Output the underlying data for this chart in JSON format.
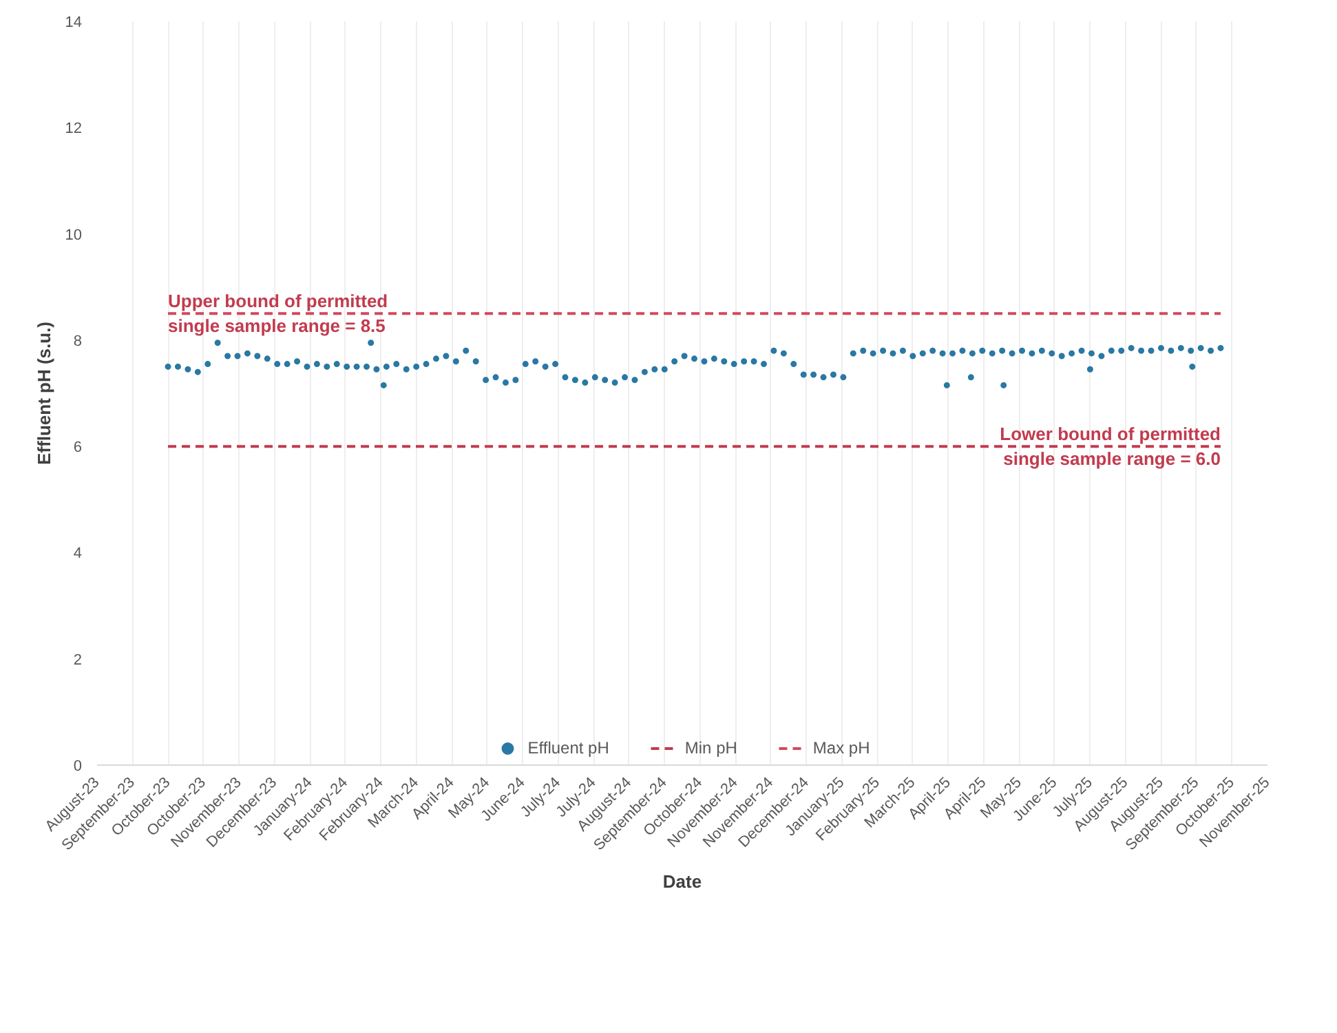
{
  "chart_data": {
    "type": "scatter",
    "xlabel": "Date",
    "ylabel": "Effluent pH (s.u.)",
    "xlim": [
      "2023-08-12",
      "2025-11-14"
    ],
    "ylim": [
      0,
      14
    ],
    "yticks": [
      0,
      2,
      4,
      6,
      8,
      10,
      12,
      14
    ],
    "xticks": [
      {
        "value": "2023-08-12",
        "label": "August-23"
      },
      {
        "value": "2023-09-06",
        "label": "September-23"
      },
      {
        "value": "2023-10-01",
        "label": "October-23"
      },
      {
        "value": "2023-10-26",
        "label": "October-23"
      },
      {
        "value": "2023-11-20",
        "label": "November-23"
      },
      {
        "value": "2023-12-15",
        "label": "December-23"
      },
      {
        "value": "2024-01-09",
        "label": "January-24"
      },
      {
        "value": "2024-02-03",
        "label": "February-24"
      },
      {
        "value": "2024-02-28",
        "label": "February-24"
      },
      {
        "value": "2024-03-24",
        "label": "March-24"
      },
      {
        "value": "2024-04-18",
        "label": "April-24"
      },
      {
        "value": "2024-05-13",
        "label": "May-24"
      },
      {
        "value": "2024-06-07",
        "label": "June-24"
      },
      {
        "value": "2024-07-02",
        "label": "July-24"
      },
      {
        "value": "2024-07-27",
        "label": "July-24"
      },
      {
        "value": "2024-08-21",
        "label": "August-24"
      },
      {
        "value": "2024-09-15",
        "label": "September-24"
      },
      {
        "value": "2024-10-10",
        "label": "October-24"
      },
      {
        "value": "2024-11-04",
        "label": "November-24"
      },
      {
        "value": "2024-11-29",
        "label": "November-24"
      },
      {
        "value": "2024-12-24",
        "label": "December-24"
      },
      {
        "value": "2025-01-18",
        "label": "January-25"
      },
      {
        "value": "2025-02-12",
        "label": "February-25"
      },
      {
        "value": "2025-03-09",
        "label": "March-25"
      },
      {
        "value": "2025-04-03",
        "label": "April-25"
      },
      {
        "value": "2025-04-28",
        "label": "April-25"
      },
      {
        "value": "2025-05-23",
        "label": "May-25"
      },
      {
        "value": "2025-06-17",
        "label": "June-25"
      },
      {
        "value": "2025-07-12",
        "label": "July-25"
      },
      {
        "value": "2025-08-06",
        "label": "August-25"
      },
      {
        "value": "2025-08-31",
        "label": "August-25"
      },
      {
        "value": "2025-09-25",
        "label": "September-25"
      },
      {
        "value": "2025-10-20",
        "label": "October-25"
      },
      {
        "value": "2025-11-14",
        "label": "November-25"
      }
    ],
    "grid": "x",
    "legend": "bottom",
    "series": [
      {
        "name": "Effluent pH",
        "marker": "circle",
        "color": "#2a78a4",
        "x": [
          "2023-10-01",
          "2023-10-08",
          "2023-10-15",
          "2023-10-22",
          "2023-10-29",
          "2023-11-05",
          "2023-11-12",
          "2023-11-19",
          "2023-11-26",
          "2023-12-03",
          "2023-12-10",
          "2023-12-17",
          "2023-12-24",
          "2023-12-31",
          "2024-01-07",
          "2024-01-14",
          "2024-01-21",
          "2024-01-28",
          "2024-02-04",
          "2024-02-11",
          "2024-02-18",
          "2024-02-21",
          "2024-02-25",
          "2024-03-01",
          "2024-03-03",
          "2024-03-10",
          "2024-03-17",
          "2024-03-24",
          "2024-03-31",
          "2024-04-07",
          "2024-04-14",
          "2024-04-21",
          "2024-04-28",
          "2024-05-05",
          "2024-05-12",
          "2024-05-19",
          "2024-05-26",
          "2024-06-02",
          "2024-06-09",
          "2024-06-16",
          "2024-06-23",
          "2024-06-30",
          "2024-07-07",
          "2024-07-14",
          "2024-07-21",
          "2024-07-28",
          "2024-08-04",
          "2024-08-11",
          "2024-08-18",
          "2024-08-25",
          "2024-09-01",
          "2024-09-08",
          "2024-09-15",
          "2024-09-22",
          "2024-09-29",
          "2024-10-06",
          "2024-10-13",
          "2024-10-20",
          "2024-10-27",
          "2024-11-03",
          "2024-11-10",
          "2024-11-17",
          "2024-11-24",
          "2024-12-01",
          "2024-12-08",
          "2024-12-15",
          "2024-12-22",
          "2024-12-29",
          "2025-01-05",
          "2025-01-12",
          "2025-01-19",
          "2025-01-26",
          "2025-02-02",
          "2025-02-09",
          "2025-02-16",
          "2025-02-23",
          "2025-03-02",
          "2025-03-09",
          "2025-03-16",
          "2025-03-23",
          "2025-03-30",
          "2025-04-02",
          "2025-04-06",
          "2025-04-13",
          "2025-04-19",
          "2025-04-20",
          "2025-04-27",
          "2025-05-04",
          "2025-05-11",
          "2025-05-12",
          "2025-05-18",
          "2025-05-25",
          "2025-06-01",
          "2025-06-08",
          "2025-06-15",
          "2025-06-22",
          "2025-06-29",
          "2025-07-06",
          "2025-07-12",
          "2025-07-13",
          "2025-07-20",
          "2025-07-27",
          "2025-08-03",
          "2025-08-10",
          "2025-08-17",
          "2025-08-24",
          "2025-08-31",
          "2025-09-07",
          "2025-09-14",
          "2025-09-21",
          "2025-09-22",
          "2025-09-28",
          "2025-10-05",
          "2025-10-12"
        ],
        "values": [
          7.5,
          7.5,
          7.45,
          7.4,
          7.55,
          7.95,
          7.7,
          7.7,
          7.75,
          7.7,
          7.65,
          7.55,
          7.55,
          7.6,
          7.5,
          7.55,
          7.5,
          7.55,
          7.5,
          7.5,
          7.5,
          7.95,
          7.45,
          7.15,
          7.5,
          7.55,
          7.45,
          7.5,
          7.55,
          7.65,
          7.7,
          7.6,
          7.8,
          7.6,
          7.25,
          7.3,
          7.2,
          7.25,
          7.55,
          7.6,
          7.5,
          7.55,
          7.3,
          7.25,
          7.2,
          7.3,
          7.25,
          7.2,
          7.3,
          7.25,
          7.4,
          7.45,
          7.45,
          7.6,
          7.7,
          7.65,
          7.6,
          7.65,
          7.6,
          7.55,
          7.6,
          7.6,
          7.55,
          7.8,
          7.75,
          7.55,
          7.35,
          7.35,
          7.3,
          7.35,
          7.3,
          7.75,
          7.8,
          7.75,
          7.8,
          7.75,
          7.8,
          7.7,
          7.75,
          7.8,
          7.75,
          7.15,
          7.75,
          7.8,
          7.3,
          7.75,
          7.8,
          7.75,
          7.8,
          7.15,
          7.75,
          7.8,
          7.75,
          7.8,
          7.75,
          7.7,
          7.75,
          7.8,
          7.45,
          7.75,
          7.7,
          7.8,
          7.8,
          7.85,
          7.8,
          7.8,
          7.85,
          7.8,
          7.85,
          7.8,
          7.5,
          7.85,
          7.8,
          7.85
        ]
      },
      {
        "name": "Min pH",
        "type": "line",
        "line_style": "dashed",
        "color": "#c23b4e",
        "x": [
          "2023-10-01",
          "2025-10-12"
        ],
        "values": [
          6,
          6
        ]
      },
      {
        "name": "Max pH",
        "type": "line",
        "line_style": "dashed",
        "color": "#d4485c",
        "x": [
          "2023-10-01",
          "2025-10-12"
        ],
        "values": [
          8.5,
          8.5
        ]
      }
    ],
    "annotations": [
      {
        "text": "Upper bound of permitted\nsingle sample range = 8.5",
        "x": "2023-10-01",
        "y": 8.5
      },
      {
        "text": "Lower bound of permitted\nsingle sample range = 6.0",
        "x": "2025-10-12",
        "y": 6.0
      }
    ]
  }
}
